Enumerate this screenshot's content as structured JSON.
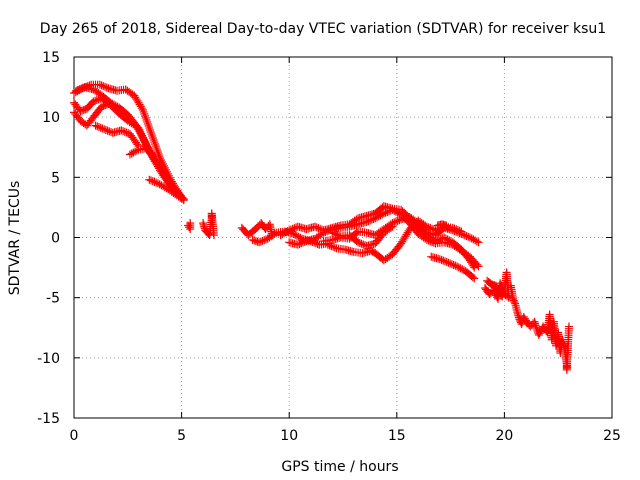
{
  "chart_data": {
    "type": "scatter",
    "title": "Day 265 of 2018, Sidereal Day-to-day VTEC variation (SDTVAR) for receiver ksu1",
    "xlabel": "GPS time / hours",
    "ylabel": "SDTVAR / TECUs",
    "xlim": [
      0,
      25
    ],
    "ylim": [
      -15,
      15
    ],
    "xticks": [
      0,
      5,
      10,
      15,
      20,
      25
    ],
    "yticks": [
      -15,
      -10,
      -5,
      0,
      5,
      10,
      15
    ],
    "grid": true,
    "marker": "+",
    "series_color": "#ff0000",
    "tracks": [
      [
        [
          0.0,
          12.0
        ],
        [
          0.4,
          12.4
        ],
        [
          0.8,
          12.7
        ],
        [
          1.2,
          12.7
        ],
        [
          1.6,
          12.4
        ],
        [
          2.0,
          12.2
        ],
        [
          2.4,
          12.3
        ],
        [
          2.8,
          11.8
        ],
        [
          3.2,
          10.6
        ],
        [
          3.6,
          8.6
        ],
        [
          4.0,
          6.6
        ],
        [
          4.5,
          4.8
        ],
        [
          5.0,
          3.3
        ]
      ],
      [
        [
          0.1,
          12.2
        ],
        [
          0.5,
          12.5
        ],
        [
          0.9,
          12.3
        ],
        [
          1.3,
          11.8
        ],
        [
          1.7,
          11.2
        ],
        [
          2.1,
          10.8
        ],
        [
          2.5,
          10.2
        ],
        [
          2.9,
          9.3
        ],
        [
          3.3,
          7.9
        ],
        [
          3.7,
          6.5
        ],
        [
          4.2,
          5.0
        ],
        [
          4.8,
          3.6
        ]
      ],
      [
        [
          0.0,
          11.2
        ],
        [
          0.3,
          10.5
        ],
        [
          0.6,
          10.7
        ],
        [
          0.9,
          11.3
        ],
        [
          1.3,
          11.6
        ],
        [
          1.7,
          11.0
        ],
        [
          2.1,
          10.3
        ],
        [
          2.5,
          9.7
        ],
        [
          3.0,
          9.1
        ],
        [
          3.5,
          7.2
        ],
        [
          4.0,
          5.6
        ],
        [
          4.6,
          4.1
        ]
      ],
      [
        [
          0.0,
          10.4
        ],
        [
          0.3,
          9.7
        ],
        [
          0.6,
          9.3
        ],
        [
          0.9,
          10.0
        ],
        [
          1.3,
          10.9
        ],
        [
          1.6,
          11.1
        ]
      ],
      [
        [
          1.0,
          9.3
        ],
        [
          1.4,
          9.0
        ],
        [
          1.8,
          8.7
        ],
        [
          2.2,
          8.9
        ],
        [
          2.6,
          8.6
        ],
        [
          3.0,
          7.6
        ]
      ],
      [
        [
          2.6,
          6.9
        ],
        [
          3.0,
          7.3
        ],
        [
          3.3,
          7.4
        ],
        [
          3.6,
          7.0
        ],
        [
          4.0,
          5.9
        ],
        [
          4.4,
          4.6
        ],
        [
          4.8,
          3.8
        ],
        [
          5.1,
          3.2
        ]
      ],
      [
        [
          3.5,
          4.8
        ],
        [
          3.9,
          4.5
        ],
        [
          4.3,
          4.1
        ],
        [
          4.7,
          3.6
        ],
        [
          5.1,
          3.1
        ]
      ],
      [
        [
          5.3,
          1.0
        ],
        [
          5.4,
          0.7
        ],
        [
          5.4,
          1.2
        ]
      ],
      [
        [
          6.0,
          1.2
        ],
        [
          6.1,
          0.6
        ],
        [
          6.2,
          0.4
        ],
        [
          6.3,
          0.2
        ],
        [
          6.4,
          1.6
        ],
        [
          6.4,
          2.0
        ],
        [
          6.5,
          0.2
        ]
      ],
      [
        [
          7.8,
          0.8
        ],
        [
          8.1,
          0.2
        ],
        [
          8.3,
          0.5
        ],
        [
          8.5,
          0.8
        ],
        [
          8.7,
          1.2
        ],
        [
          8.9,
          0.7
        ],
        [
          9.1,
          1.1
        ],
        [
          9.2,
          0.2
        ]
      ],
      [
        [
          8.3,
          -0.2
        ],
        [
          8.6,
          -0.4
        ],
        [
          9.0,
          -0.1
        ],
        [
          9.4,
          0.4
        ],
        [
          9.8,
          0.5
        ],
        [
          10.2,
          0.3
        ],
        [
          10.6,
          -0.1
        ],
        [
          11.0,
          -0.3
        ],
        [
          11.4,
          -0.6
        ],
        [
          11.8,
          -0.5
        ]
      ],
      [
        [
          9.6,
          0.2
        ],
        [
          10.0,
          0.6
        ],
        [
          10.4,
          0.9
        ],
        [
          10.8,
          0.7
        ],
        [
          11.2,
          0.9
        ],
        [
          11.6,
          0.6
        ],
        [
          12.0,
          0.8
        ],
        [
          12.4,
          1.0
        ],
        [
          12.8,
          1.1
        ],
        [
          13.2,
          1.6
        ],
        [
          13.6,
          1.8
        ],
        [
          14.0,
          2.0
        ],
        [
          14.4,
          2.6
        ],
        [
          14.8,
          2.4
        ],
        [
          15.2,
          2.3
        ],
        [
          15.6,
          1.6
        ],
        [
          16.0,
          0.8
        ],
        [
          16.4,
          0.2
        ],
        [
          16.8,
          -0.3
        ],
        [
          17.2,
          0.0
        ],
        [
          17.6,
          -0.4
        ],
        [
          18.0,
          -1.0
        ],
        [
          18.4,
          -1.9
        ],
        [
          18.6,
          -2.5
        ]
      ],
      [
        [
          10.0,
          -0.4
        ],
        [
          10.4,
          -0.6
        ],
        [
          10.8,
          -0.3
        ],
        [
          11.2,
          -0.1
        ],
        [
          11.6,
          0.4
        ],
        [
          12.0,
          0.7
        ],
        [
          12.4,
          0.8
        ],
        [
          12.8,
          0.9
        ],
        [
          13.2,
          1.1
        ],
        [
          13.6,
          1.3
        ],
        [
          14.0,
          1.6
        ],
        [
          14.4,
          2.0
        ],
        [
          14.8,
          2.3
        ],
        [
          15.2,
          1.9
        ],
        [
          15.6,
          1.2
        ],
        [
          16.0,
          0.3
        ],
        [
          16.4,
          -0.2
        ],
        [
          16.8,
          -0.5
        ],
        [
          17.2,
          -0.4
        ],
        [
          17.6,
          -0.6
        ],
        [
          18.0,
          -1.1
        ],
        [
          18.4,
          -1.6
        ],
        [
          18.8,
          -2.4
        ]
      ],
      [
        [
          11.6,
          -0.3
        ],
        [
          12.0,
          -0.2
        ],
        [
          12.4,
          0.0
        ],
        [
          12.8,
          -0.1
        ],
        [
          13.2,
          0.5
        ],
        [
          13.6,
          0.4
        ],
        [
          14.0,
          0.2
        ],
        [
          14.4,
          0.7
        ],
        [
          14.8,
          1.2
        ],
        [
          15.2,
          1.5
        ],
        [
          15.6,
          1.7
        ],
        [
          16.0,
          1.2
        ],
        [
          16.4,
          0.4
        ],
        [
          16.8,
          0.2
        ],
        [
          17.2,
          0.8
        ],
        [
          17.6,
          0.6
        ],
        [
          18.0,
          0.3
        ],
        [
          18.4,
          0.0
        ],
        [
          18.8,
          -0.4
        ]
      ],
      [
        [
          11.8,
          -0.6
        ],
        [
          12.2,
          -0.9
        ],
        [
          12.6,
          -1.0
        ],
        [
          13.0,
          -1.2
        ],
        [
          13.4,
          -1.3
        ],
        [
          13.8,
          -1.1
        ],
        [
          14.0,
          -1.3
        ],
        [
          14.4,
          -1.9
        ],
        [
          14.8,
          -1.4
        ],
        [
          15.2,
          -0.5
        ],
        [
          15.6,
          0.7
        ],
        [
          16.0,
          1.4
        ],
        [
          16.4,
          0.9
        ],
        [
          16.8,
          0.6
        ],
        [
          17.2,
          0.9
        ],
        [
          17.6,
          0.8
        ],
        [
          18.0,
          0.5
        ]
      ],
      [
        [
          12.0,
          0.4
        ],
        [
          12.4,
          0.1
        ],
        [
          12.8,
          0.2
        ],
        [
          13.2,
          -0.4
        ],
        [
          13.6,
          -0.7
        ],
        [
          14.0,
          -0.5
        ],
        [
          14.4,
          0.4
        ],
        [
          14.8,
          0.9
        ]
      ],
      [
        [
          16.6,
          -1.6
        ],
        [
          17.0,
          -1.8
        ],
        [
          17.4,
          -2.1
        ],
        [
          17.8,
          -2.4
        ],
        [
          18.2,
          -2.8
        ],
        [
          18.6,
          -3.4
        ]
      ],
      [
        [
          16.9,
          1.0
        ],
        [
          17.1,
          1.1
        ],
        [
          17.3,
          1.0
        ]
      ],
      [
        [
          19.1,
          -4.2
        ],
        [
          19.3,
          -4.7
        ],
        [
          19.5,
          -4.4
        ],
        [
          19.7,
          -5.1
        ],
        [
          19.8,
          -3.8
        ],
        [
          20.0,
          -4.6
        ],
        [
          20.1,
          -2.9
        ],
        [
          20.2,
          -5.0
        ],
        [
          19.2,
          -3.6
        ],
        [
          19.4,
          -3.9
        ],
        [
          19.6,
          -4.0
        ],
        [
          19.9,
          -4.9
        ]
      ],
      [
        [
          20.3,
          -4.0
        ],
        [
          20.4,
          -5.1
        ],
        [
          20.5,
          -5.5
        ],
        [
          20.6,
          -6.2
        ],
        [
          20.7,
          -6.8
        ],
        [
          20.8,
          -7.2
        ],
        [
          20.9,
          -6.6
        ],
        [
          21.0,
          -6.9
        ],
        [
          21.2,
          -7.4
        ],
        [
          21.4,
          -7.0
        ],
        [
          21.5,
          -7.6
        ],
        [
          21.6,
          -8.1
        ],
        [
          21.8,
          -7.4
        ],
        [
          22.0,
          -7.9
        ],
        [
          22.1,
          -6.4
        ],
        [
          22.2,
          -8.5
        ],
        [
          22.3,
          -7.0
        ],
        [
          22.4,
          -9.0
        ],
        [
          22.5,
          -7.9
        ],
        [
          22.6,
          -9.6
        ],
        [
          22.7,
          -8.5
        ],
        [
          22.8,
          -9.1
        ],
        [
          22.9,
          -10.6
        ],
        [
          22.9,
          -11.0
        ],
        [
          23.0,
          -7.4
        ]
      ]
    ]
  }
}
